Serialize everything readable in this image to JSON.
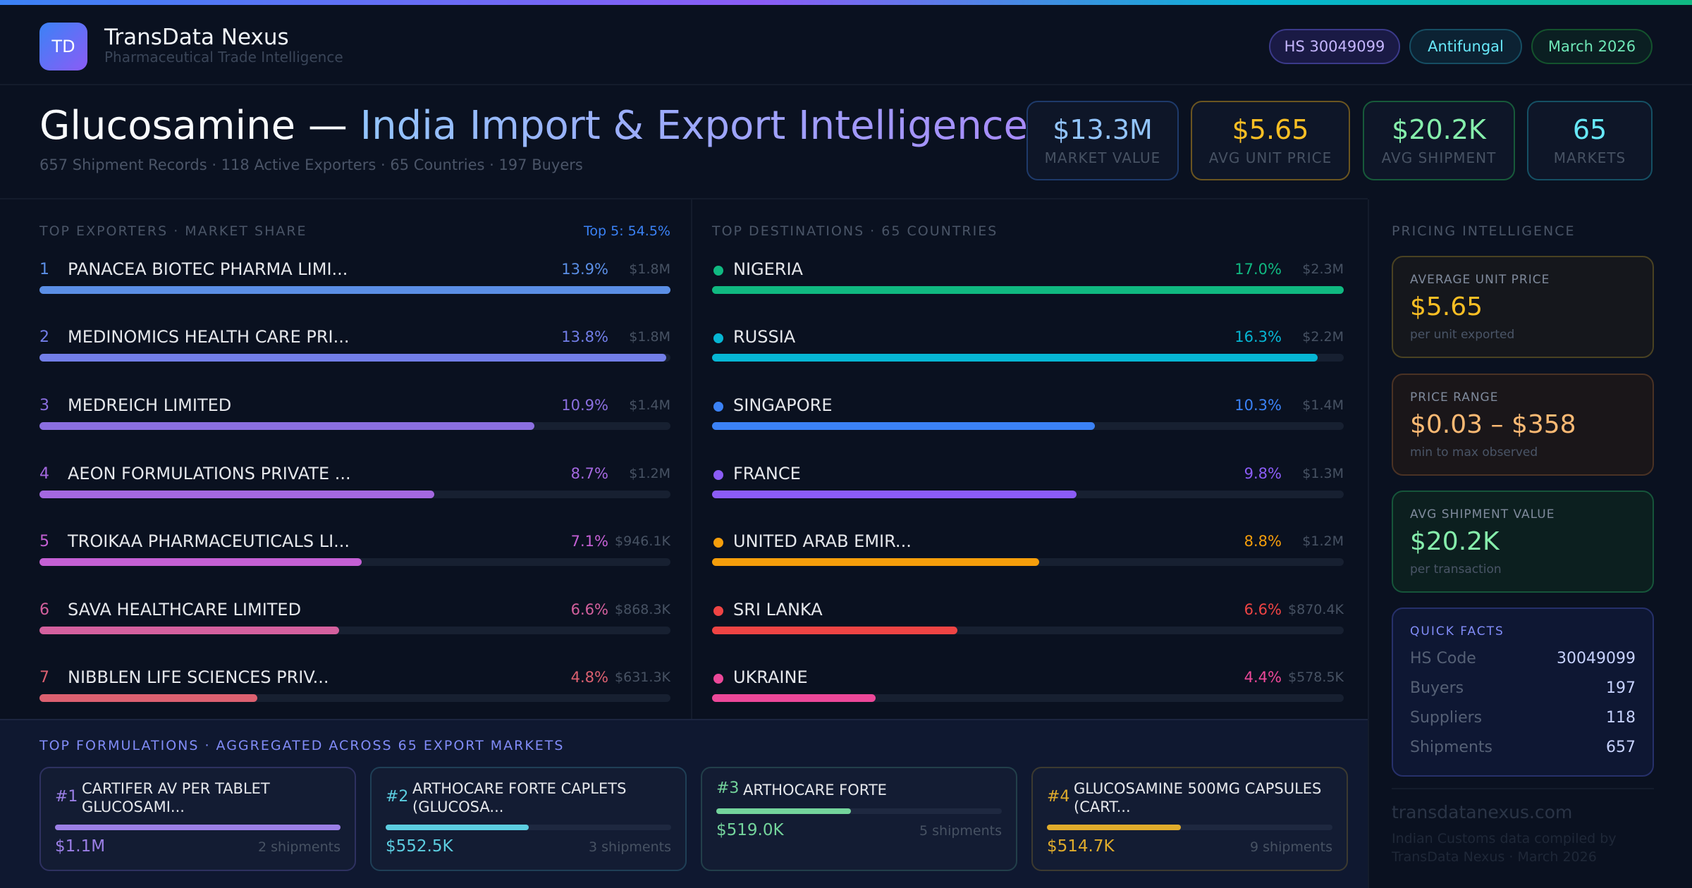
{
  "brand": {
    "logo": "TD",
    "name": "TransData Nexus",
    "tagline": "Pharmaceutical Trade Intelligence"
  },
  "pills": [
    {
      "label": "HS 30049099",
      "color": "#c4b5fd",
      "border": "#3b3a8a",
      "bg": "#1a1a45"
    },
    {
      "label": "Antifungal",
      "color": "#67e8f9",
      "border": "#164e63",
      "bg": "#0c2233"
    },
    {
      "label": "March 2026",
      "color": "#6ee7b7",
      "border": "#14532d",
      "bg": "#0b1f22"
    }
  ],
  "hero": {
    "title_main": "Glucosamine — ",
    "title_accent": "India Import & Export Intelligence",
    "subtitle": "657 Shipment Records · 118 Active Exporters · 65 Countries · 197 Buyers"
  },
  "kpis": [
    {
      "value": "$13.3M",
      "label": "MARKET VALUE",
      "color": "#93c5fd",
      "border": "#1e3a6a"
    },
    {
      "value": "$5.65",
      "label": "AVG UNIT PRICE",
      "color": "#fbbf24",
      "border": "#6b5520"
    },
    {
      "value": "$20.2K",
      "label": "AVG SHIPMENT",
      "color": "#86efac",
      "border": "#175a3a"
    },
    {
      "value": "65",
      "label": "MARKETS",
      "color": "#67e8f9",
      "border": "#155064"
    }
  ],
  "exporters": {
    "title": "TOP EXPORTERS · MARKET SHARE",
    "top5": "Top 5: 54.5%",
    "rows": [
      {
        "rank": "1",
        "name": "PANACEA BIOTEC PHARMA LIMI...",
        "pct": "13.9%",
        "share": 13.9,
        "amount": "$1.8M",
        "color": "#5b8fe6"
      },
      {
        "rank": "2",
        "name": "MEDINOMICS HEALTH CARE PRI...",
        "pct": "13.8%",
        "share": 13.8,
        "amount": "$1.8M",
        "color": "#727ee8"
      },
      {
        "rank": "3",
        "name": "MEDREICH LIMITED",
        "pct": "10.9%",
        "share": 10.9,
        "amount": "$1.4M",
        "color": "#8b6fe0"
      },
      {
        "rank": "4",
        "name": "AEON FORMULATIONS PRIVATE ...",
        "pct": "8.7%",
        "share": 8.7,
        "amount": "$1.2M",
        "color": "#a468e0"
      },
      {
        "rank": "5",
        "name": "TROIKAA PHARMACEUTICALS LI...",
        "pct": "7.1%",
        "share": 7.1,
        "amount": "$946.1K",
        "color": "#c460d4"
      },
      {
        "rank": "6",
        "name": "SAVA HEALTHCARE LIMITED",
        "pct": "6.6%",
        "share": 6.6,
        "amount": "$868.3K",
        "color": "#d4609e"
      },
      {
        "rank": "7",
        "name": "NIBBLEN LIFE SCIENCES PRIV...",
        "pct": "4.8%",
        "share": 4.8,
        "amount": "$631.3K",
        "color": "#dc6070"
      }
    ]
  },
  "destinations": {
    "title": "TOP DESTINATIONS · 65 COUNTRIES",
    "rows": [
      {
        "name": "NIGERIA",
        "pct": "17.0%",
        "share": 17.0,
        "amount": "$2.3M",
        "color": "#10b981"
      },
      {
        "name": "RUSSIA",
        "pct": "16.3%",
        "share": 16.3,
        "amount": "$2.2M",
        "color": "#06b6d4"
      },
      {
        "name": "SINGAPORE",
        "pct": "10.3%",
        "share": 10.3,
        "amount": "$1.4M",
        "color": "#3b82f6"
      },
      {
        "name": "FRANCE",
        "pct": "9.8%",
        "share": 9.8,
        "amount": "$1.3M",
        "color": "#8b5cf6"
      },
      {
        "name": "UNITED ARAB EMIR...",
        "pct": "8.8%",
        "share": 8.8,
        "amount": "$1.2M",
        "color": "#f59e0b"
      },
      {
        "name": "SRI LANKA",
        "pct": "6.6%",
        "share": 6.6,
        "amount": "$870.4K",
        "color": "#ef4444"
      },
      {
        "name": "UKRAINE",
        "pct": "4.4%",
        "share": 4.4,
        "amount": "$578.5K",
        "color": "#ec4899"
      }
    ]
  },
  "formulations": {
    "title": "TOP FORMULATIONS · AGGREGATED ACROSS 65 EXPORT MARKETS",
    "cards": [
      {
        "num": "#1",
        "name": "CARTIFER AV PER TABLET GLUCOSAMI...",
        "value": "$1.1M",
        "amount": 1100,
        "shipments": "2 shipments",
        "color": "#9b7fe6",
        "border": "#2e3160",
        "lines": 2
      },
      {
        "num": "#2",
        "name": "ARTHOCARE FORTE CAPLETS (GLUCOSA...",
        "value": "$552.5K",
        "amount": 552.5,
        "shipments": "3 shipments",
        "color": "#5ccde0",
        "border": "#1f3f56",
        "lines": 2
      },
      {
        "num": "#3",
        "name": "ARTHOCARE FORTE",
        "value": "$519.0K",
        "amount": 519.0,
        "shipments": "5 shipments",
        "color": "#74d49c",
        "border": "#223f4a",
        "lines": 1
      },
      {
        "num": "#4",
        "name": "GLUCOSAMINE 500MG CAPSULES (CART...",
        "value": "$514.7K",
        "amount": 514.7,
        "shipments": "9 shipments",
        "color": "#e0ac2c",
        "border": "#3c3a30",
        "lines": 2
      }
    ]
  },
  "pricing": {
    "title": "PRICING INTELLIGENCE",
    "avg": {
      "label": "AVERAGE UNIT PRICE",
      "value": "$5.65",
      "sub": "per unit exported"
    },
    "range": {
      "label": "PRICE RANGE",
      "value": "$0.03 – $358",
      "sub": "min to max observed"
    },
    "ship": {
      "label": "AVG SHIPMENT VALUE",
      "value": "$20.2K",
      "sub": "per transaction"
    },
    "facts": {
      "title": "QUICK FACTS",
      "rows": [
        {
          "k": "HS Code",
          "v": "30049099"
        },
        {
          "k": "Buyers",
          "v": "197"
        },
        {
          "k": "Suppliers",
          "v": "118"
        },
        {
          "k": "Shipments",
          "v": "657"
        }
      ]
    },
    "site": "transdatanexus.com",
    "note": "Indian Customs data compiled by TransData Nexus · March 2026"
  }
}
